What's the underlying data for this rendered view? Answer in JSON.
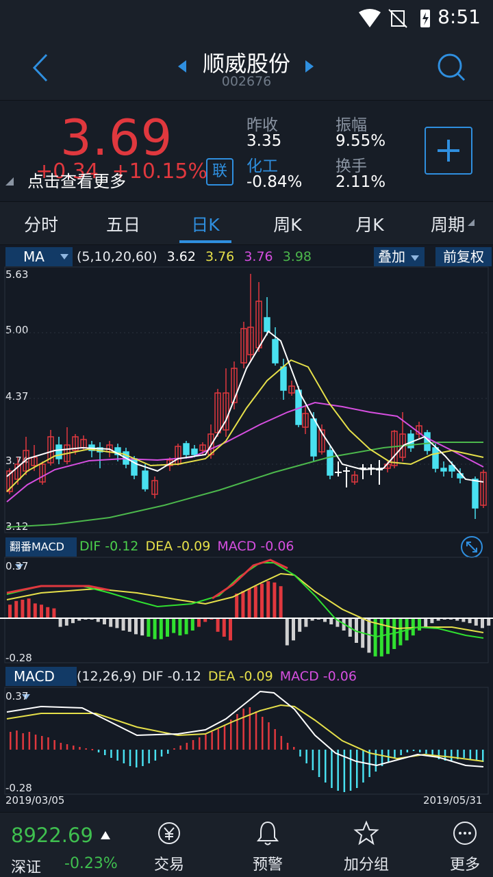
{
  "status": {
    "time": "8:51"
  },
  "header": {
    "title": "顺威股份",
    "code": "002676"
  },
  "quote": {
    "price": "3.69",
    "change": "+0.34",
    "change_pct": "+10.15%",
    "tap_hint": "点击查看更多",
    "lian": "联",
    "prev_close_label": "昨收",
    "prev_close": "3.35",
    "amplitude_label": "振幅",
    "amplitude": "9.55%",
    "sector_label": "化工",
    "sector_change": "-0.84%",
    "turnover_label": "换手",
    "turnover": "2.11%"
  },
  "tabs": [
    "分时",
    "五日",
    "日K",
    "周K",
    "月K",
    "周期"
  ],
  "active_tab": "日K",
  "ma_bar": {
    "selector": "MA",
    "params": "(5,10,20,60)",
    "ma5": "3.62",
    "ma10": "3.76",
    "ma20": "3.76",
    "ma60": "3.98",
    "overlay": "叠加",
    "adjust": "前复权"
  },
  "colors": {
    "up": "#e0383e",
    "down": "#49e0f0",
    "ma5": "#ffffff",
    "ma10": "#e6e04a",
    "ma20": "#d64fe0",
    "ma60": "#4cb84c",
    "accent": "#2f8fdf"
  },
  "kline_axis": {
    "ticks": [
      "5.63",
      "5.00",
      "4.37",
      "3.74",
      "3.12"
    ]
  },
  "fanfan_bar": {
    "selector": "翻番MACD",
    "dif_label": "DIF",
    "dif": "-0.12",
    "dea_label": "DEA",
    "dea": "-0.09",
    "macd_label": "MACD",
    "macd": "-0.06",
    "top": "0.37",
    "bottom": "-0.28"
  },
  "macd_bar": {
    "selector": "MACD",
    "params": "(12,26,9)",
    "dif_label": "DIF",
    "dif": "-0.12",
    "dea_label": "DEA",
    "dea": "-0.09",
    "macd_label": "MACD",
    "macd": "-0.06",
    "top": "0.37",
    "bottom": "-0.28",
    "date_start": "2019/03/05",
    "date_end": "2019/05/31"
  },
  "bottom": {
    "index_value": "8922.69",
    "index_name": "深证",
    "index_change": "-0.23%",
    "nav": [
      "交易",
      "预警",
      "加分组",
      "更多"
    ]
  }
}
